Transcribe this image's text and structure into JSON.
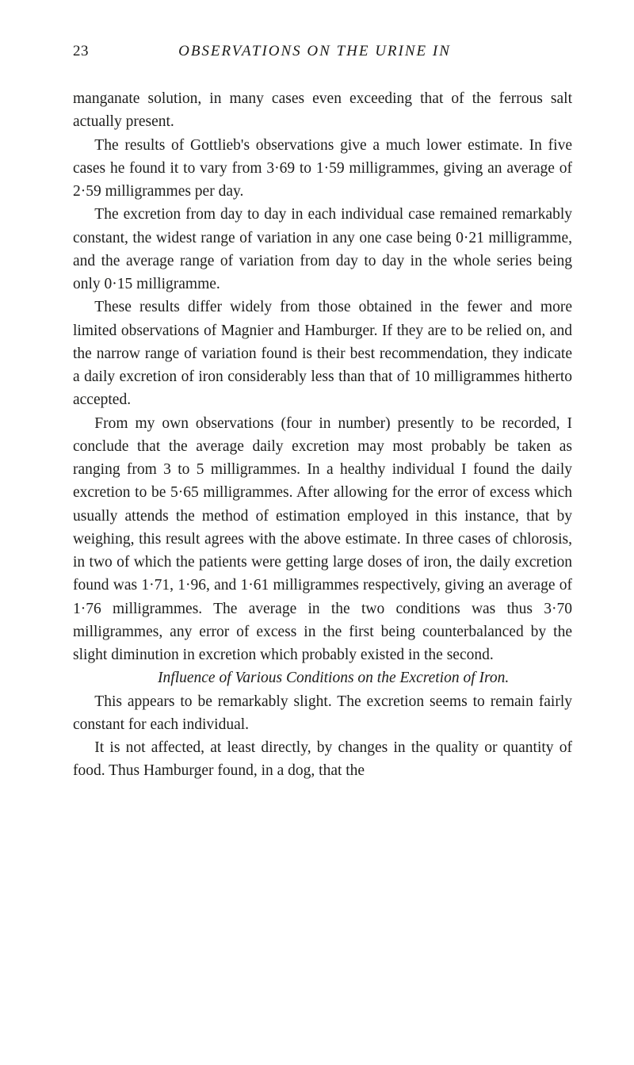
{
  "header": {
    "page_number": "23",
    "running_title": "OBSERVATIONS ON THE URINE IN"
  },
  "paragraphs": {
    "p1": "manganate solution, in many cases even exceeding that of the ferrous salt actually present.",
    "p2": "The results of Gottlieb's observations give a much lower estimate. In five cases he found it to vary from 3·69 to 1·59 milligrammes, giving an average of 2·59 milligrammes per day.",
    "p3": "The excretion from day to day in each individual case remained remarkably constant, the widest range of variation in any one case being 0·21 milligramme, and the average range of variation from day to day in the whole series being only 0·15 milligramme.",
    "p4": "These results differ widely from those obtained in the fewer and more limited observations of Magnier and Hamburger. If they are to be relied on, and the narrow range of variation found is their best recommendation, they indicate a daily excretion of iron considerably less than that of 10 milligrammes hitherto accepted.",
    "p5": "From my own observations (four in number) presently to be recorded, I conclude that the average daily excretion may most probably be taken as ranging from 3 to 5 milligrammes. In a healthy individual I found the daily excretion to be 5·65 milligrammes. After allowing for the error of excess which usually attends the method of estimation employed in this instance, that by weighing, this result agrees with the above estimate. In three cases of chlorosis, in two of which the patients were getting large doses of iron, the daily excretion found was 1·71, 1·96, and 1·61 milligrammes respectively, giving an average of 1·76 milligrammes. The average in the two conditions was thus 3·70 milligrammes, any error of excess in the first being counterbalanced by the slight diminution in excretion which probably existed in the second.",
    "section_title": "Influence of Various Conditions on the Excretion of Iron.",
    "p6": "This appears to be remarkably slight. The excretion seems to remain fairly constant for each individual.",
    "p7": "It is not affected, at least directly, by changes in the quality or quantity of food. Thus Hamburger found, in a dog, that the"
  }
}
